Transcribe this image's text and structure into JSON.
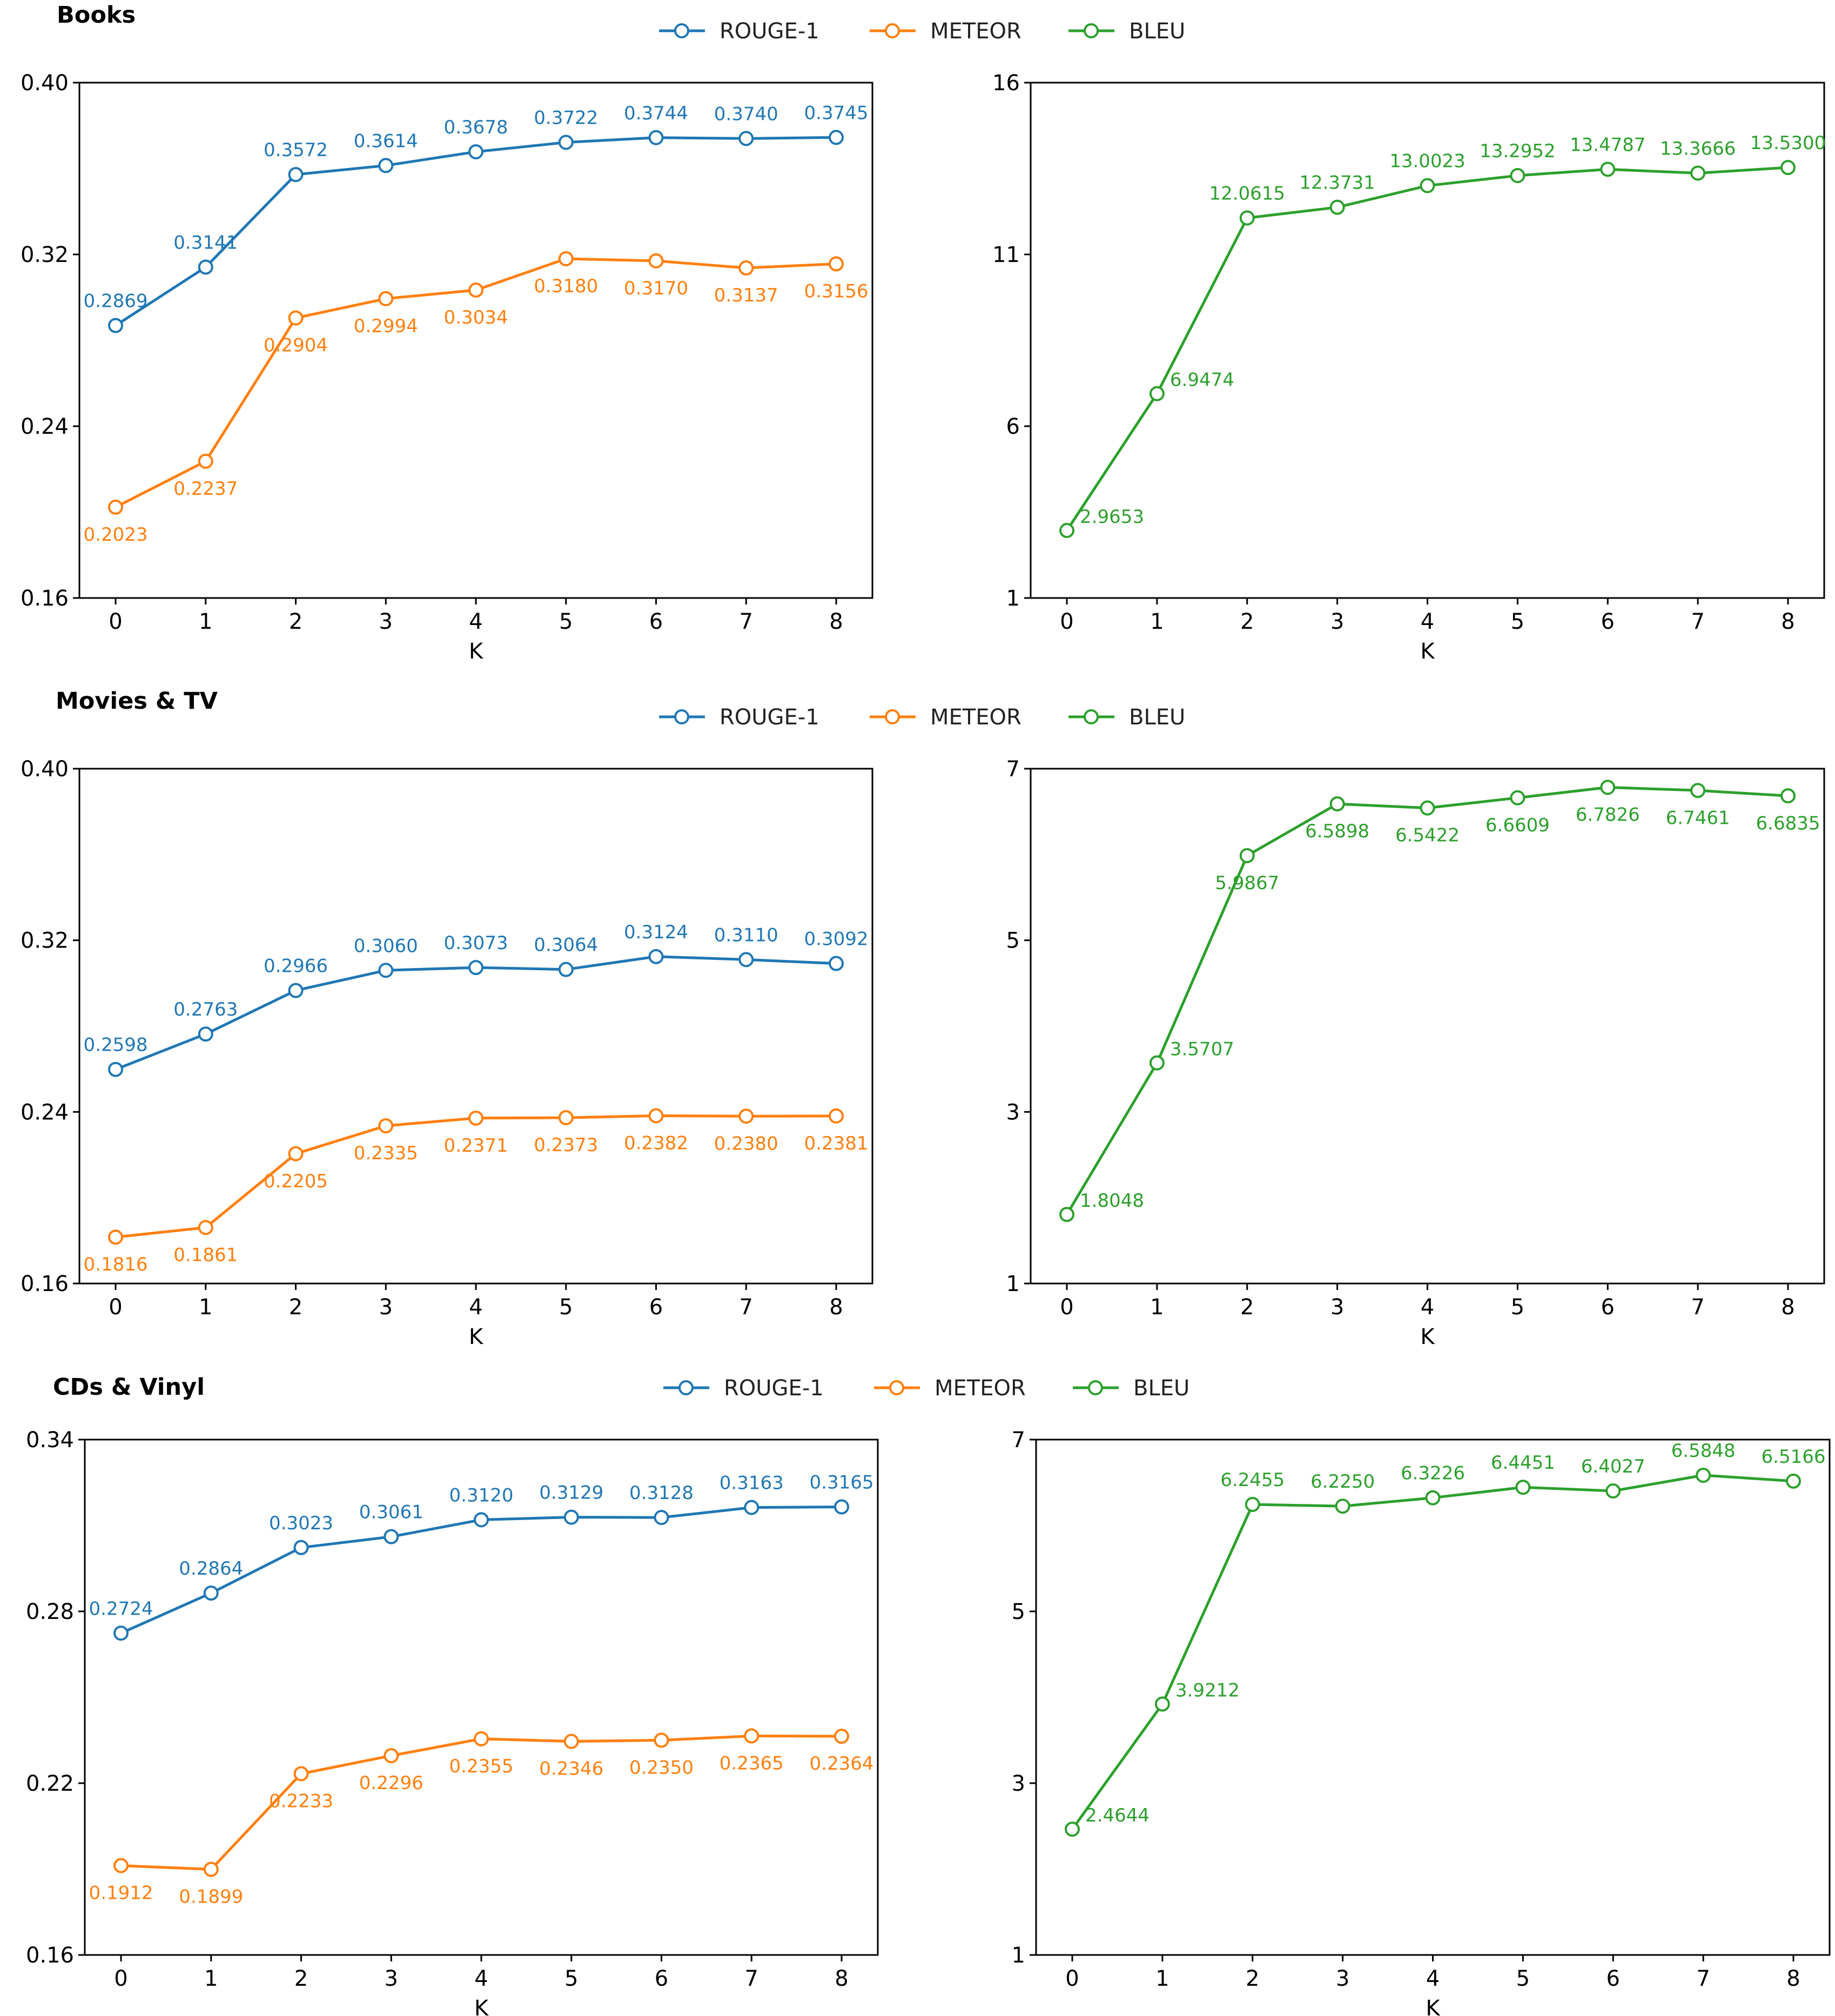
{
  "colors": {
    "rouge": "#1f77b4",
    "meteor": "#ff7f0e",
    "bleu": "#2ca02c",
    "axis": "#000000"
  },
  "legend": {
    "rouge": "ROUGE-1",
    "meteor": "METEOR",
    "bleu": "BLEU"
  },
  "chart_data": [
    {
      "type": "line",
      "panel": "Books",
      "title": "Books",
      "metrics": "ROUGE-1 / METEOR",
      "xlabel": "K",
      "x": [
        0,
        1,
        2,
        3,
        4,
        5,
        6,
        7,
        8
      ],
      "ylim": [
        0.16,
        0.4
      ],
      "yticks": [
        "0.16",
        "0.24",
        "0.32",
        "0.40"
      ],
      "grid": false,
      "series": [
        {
          "name": "ROUGE-1",
          "key": "rouge",
          "label_pos": "above",
          "values": [
            0.2869,
            0.3141,
            0.3572,
            0.3614,
            0.3678,
            0.3722,
            0.3744,
            0.374,
            0.3745
          ],
          "labels": [
            "0.2869",
            "0.3141",
            "0.3572",
            "0.3614",
            "0.3678",
            "0.3722",
            "0.3744",
            "0.3740",
            "0.3745"
          ]
        },
        {
          "name": "METEOR",
          "key": "meteor",
          "label_pos": "below",
          "values": [
            0.2023,
            0.2237,
            0.2904,
            0.2994,
            0.3034,
            0.318,
            0.317,
            0.3137,
            0.3156
          ],
          "labels": [
            "0.2023",
            "0.2237",
            "0.2904",
            "0.2994",
            "0.3034",
            "0.3180",
            "0.3170",
            "0.3137",
            "0.3156"
          ]
        }
      ]
    },
    {
      "type": "line",
      "panel": "Books",
      "metrics": "BLEU",
      "xlabel": "K",
      "x": [
        0,
        1,
        2,
        3,
        4,
        5,
        6,
        7,
        8
      ],
      "ylim": [
        1,
        16
      ],
      "yticks": [
        "1",
        "6",
        "11",
        "16"
      ],
      "grid": false,
      "series": [
        {
          "name": "BLEU",
          "key": "bleu",
          "label_pos": "above",
          "values": [
            2.9653,
            6.9474,
            12.0615,
            12.3731,
            13.0023,
            13.2952,
            13.4787,
            13.3666,
            13.53
          ],
          "labels": [
            "2.9653",
            "6.9474",
            "12.0615",
            "12.3731",
            "13.0023",
            "13.2952",
            "13.4787",
            "13.3666",
            "13.5300"
          ]
        }
      ]
    },
    {
      "type": "line",
      "panel": "Movies & TV",
      "title": "Movies & TV",
      "metrics": "ROUGE-1 / METEOR",
      "xlabel": "K",
      "x": [
        0,
        1,
        2,
        3,
        4,
        5,
        6,
        7,
        8
      ],
      "ylim": [
        0.16,
        0.4
      ],
      "yticks": [
        "0.16",
        "0.24",
        "0.32",
        "0.40"
      ],
      "grid": false,
      "series": [
        {
          "name": "ROUGE-1",
          "key": "rouge",
          "label_pos": "above",
          "values": [
            0.2598,
            0.2763,
            0.2966,
            0.306,
            0.3073,
            0.3064,
            0.3124,
            0.311,
            0.3092
          ],
          "labels": [
            "0.2598",
            "0.2763",
            "0.2966",
            "0.3060",
            "0.3073",
            "0.3064",
            "0.3124",
            "0.3110",
            "0.3092"
          ]
        },
        {
          "name": "METEOR",
          "key": "meteor",
          "label_pos": "below",
          "values": [
            0.1816,
            0.1861,
            0.2205,
            0.2335,
            0.2371,
            0.2373,
            0.2382,
            0.238,
            0.2381
          ],
          "labels": [
            "0.1816",
            "0.1861",
            "0.2205",
            "0.2335",
            "0.2371",
            "0.2373",
            "0.2382",
            "0.2380",
            "0.2381"
          ]
        }
      ]
    },
    {
      "type": "line",
      "panel": "Movies & TV",
      "metrics": "BLEU",
      "xlabel": "K",
      "x": [
        0,
        1,
        2,
        3,
        4,
        5,
        6,
        7,
        8
      ],
      "ylim": [
        1,
        7
      ],
      "yticks": [
        "1",
        "3",
        "5",
        "7"
      ],
      "grid": false,
      "series": [
        {
          "name": "BLEU",
          "key": "bleu",
          "label_pos": "below",
          "values": [
            1.8048,
            3.5707,
            5.9867,
            6.5898,
            6.5422,
            6.6609,
            6.7826,
            6.7461,
            6.6835
          ],
          "labels": [
            "1.8048",
            "3.5707",
            "5.9867",
            "6.5898",
            "6.5422",
            "6.6609",
            "6.7826",
            "6.7461",
            "6.6835"
          ]
        }
      ]
    },
    {
      "type": "line",
      "panel": "CDs & Vinyl",
      "title": "CDs & Vinyl",
      "metrics": "ROUGE-1 / METEOR",
      "xlabel": "K",
      "x": [
        0,
        1,
        2,
        3,
        4,
        5,
        6,
        7,
        8
      ],
      "ylim": [
        0.16,
        0.34
      ],
      "yticks": [
        "0.16",
        "0.22",
        "0.28",
        "0.34"
      ],
      "grid": false,
      "series": [
        {
          "name": "ROUGE-1",
          "key": "rouge",
          "label_pos": "above",
          "values": [
            0.2724,
            0.2864,
            0.3023,
            0.3061,
            0.312,
            0.3129,
            0.3128,
            0.3163,
            0.3165
          ],
          "labels": [
            "0.2724",
            "0.2864",
            "0.3023",
            "0.3061",
            "0.3120",
            "0.3129",
            "0.3128",
            "0.3163",
            "0.3165"
          ]
        },
        {
          "name": "METEOR",
          "key": "meteor",
          "label_pos": "below",
          "values": [
            0.1912,
            0.1899,
            0.2233,
            0.2296,
            0.2355,
            0.2346,
            0.235,
            0.2365,
            0.2364
          ],
          "labels": [
            "0.1912",
            "0.1899",
            "0.2233",
            "0.2296",
            "0.2355",
            "0.2346",
            "0.2350",
            "0.2365",
            "0.2364"
          ]
        }
      ]
    },
    {
      "type": "line",
      "panel": "CDs & Vinyl",
      "metrics": "BLEU",
      "xlabel": "K",
      "x": [
        0,
        1,
        2,
        3,
        4,
        5,
        6,
        7,
        8
      ],
      "ylim": [
        1,
        7
      ],
      "yticks": [
        "1",
        "3",
        "5",
        "7"
      ],
      "grid": false,
      "series": [
        {
          "name": "BLEU",
          "key": "bleu",
          "label_pos": "above",
          "values": [
            2.4644,
            3.9212,
            6.2455,
            6.225,
            6.3226,
            6.4451,
            6.4027,
            6.5848,
            6.5166
          ],
          "labels": [
            "2.4644",
            "3.9212",
            "6.2455",
            "6.2250",
            "6.3226",
            "6.4451",
            "6.4027",
            "6.5848",
            "6.5166"
          ]
        }
      ]
    }
  ]
}
